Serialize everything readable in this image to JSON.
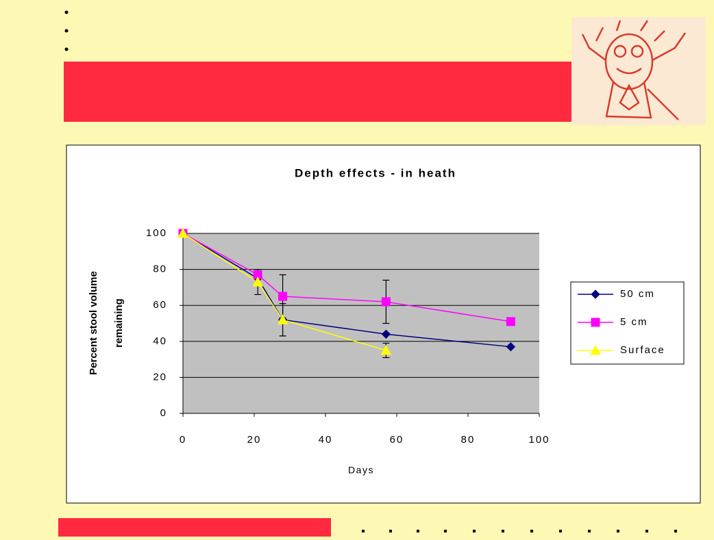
{
  "chart_data": {
    "type": "line",
    "title": "Depth effects - in heath",
    "xlabel": "Days",
    "ylabel": [
      "Percent stool volume",
      "remaining"
    ],
    "xlim": [
      0,
      100
    ],
    "xticks": [
      0,
      20,
      40,
      60,
      80,
      100
    ],
    "ylim": [
      0,
      100
    ],
    "yticks": [
      0,
      20,
      40,
      60,
      80,
      100
    ],
    "grid": true,
    "legend": "right",
    "series": [
      {
        "name": "50 cm",
        "color": "#000080",
        "marker": "diamond",
        "x": [
          0,
          21,
          28,
          57,
          92
        ],
        "values": [
          100,
          75,
          52,
          44,
          37
        ],
        "errors": [
          null,
          null,
          9,
          null,
          null
        ]
      },
      {
        "name": "5 cm",
        "color": "#ff00ff",
        "marker": "square",
        "x": [
          0,
          21,
          28,
          57,
          92
        ],
        "values": [
          100,
          77,
          65,
          62,
          51
        ],
        "errors": [
          null,
          null,
          12,
          12,
          null
        ]
      },
      {
        "name": "Surface",
        "color": "#ffff00",
        "marker": "triangle",
        "x": [
          0,
          21,
          28,
          57
        ],
        "values": [
          100,
          73,
          52,
          35
        ],
        "errors": [
          null,
          7,
          null,
          4
        ]
      }
    ]
  }
}
